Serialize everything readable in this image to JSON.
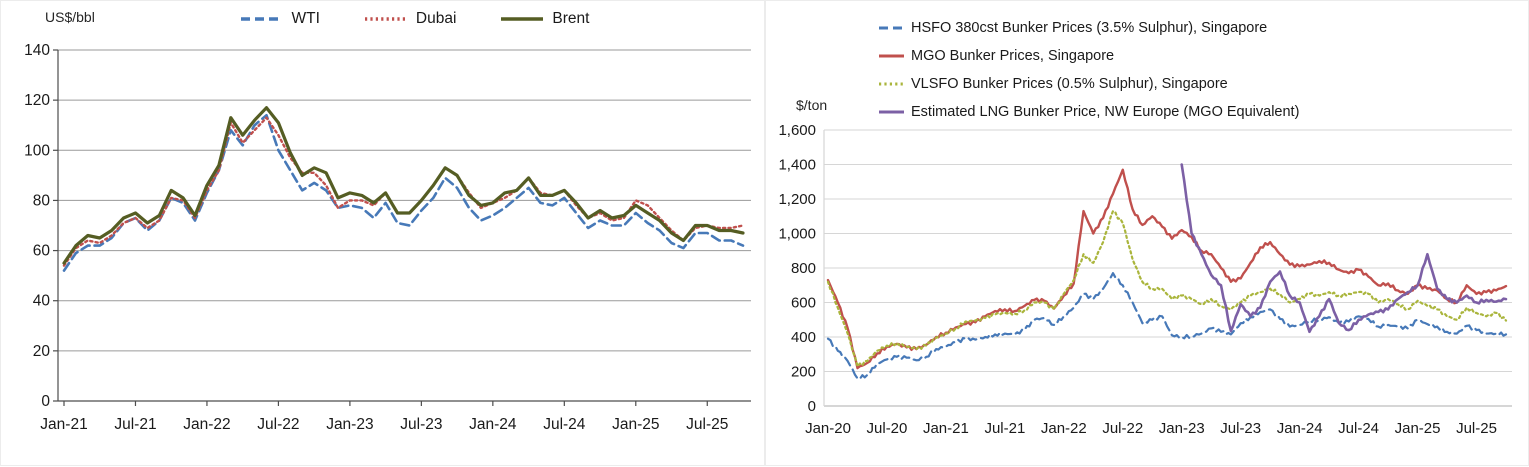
{
  "charts": [
    {
      "id": "crude-oil-spot-prices",
      "unit_label": "US$/bbl",
      "chart_data": {
        "type": "line",
        "title": "",
        "xlabel": "",
        "ylabel": "US$/bbl",
        "ylim": [
          0,
          140
        ],
        "grid": "horizontal",
        "legend_position": "top-center",
        "y_tick_labels": [
          "0",
          "20",
          "40",
          "60",
          "80",
          "100",
          "120",
          "140"
        ],
        "y_tick_values": [
          0,
          20,
          40,
          60,
          80,
          100,
          120,
          140
        ],
        "x_tick_labels": [
          "Jan-21",
          "Jul-21",
          "Jan-22",
          "Jul-22",
          "Jan-23",
          "Jul-23",
          "Jan-24",
          "Jul-24",
          "Jan-25",
          "Jul-25"
        ],
        "x_tick_every_months": 6,
        "x": [
          "Jan-21",
          "Feb-21",
          "Mar-21",
          "Apr-21",
          "May-21",
          "Jun-21",
          "Jul-21",
          "Aug-21",
          "Sep-21",
          "Oct-21",
          "Nov-21",
          "Dec-21",
          "Jan-22",
          "Feb-22",
          "Mar-22",
          "Apr-22",
          "May-22",
          "Jun-22",
          "Jul-22",
          "Aug-22",
          "Sep-22",
          "Oct-22",
          "Nov-22",
          "Dec-22",
          "Jan-23",
          "Feb-23",
          "Mar-23",
          "Apr-23",
          "May-23",
          "Jun-23",
          "Jul-23",
          "Aug-23",
          "Sep-23",
          "Oct-23",
          "Nov-23",
          "Dec-23",
          "Jan-24",
          "Feb-24",
          "Mar-24",
          "Apr-24",
          "May-24",
          "Jun-24",
          "Jul-24",
          "Aug-24",
          "Sep-24",
          "Oct-24",
          "Nov-24",
          "Dec-24",
          "Jan-25",
          "Feb-25",
          "Mar-25",
          "Apr-25",
          "May-25",
          "Jun-25",
          "Jul-25",
          "Aug-25",
          "Sep-25",
          "Oct-25"
        ],
        "series": [
          {
            "name": "WTI",
            "color": "#4779B8",
            "style": "dashed",
            "width": 2.6,
            "values": [
              52,
              59,
              62,
              62,
              65,
              71,
              73,
              68,
              72,
              81,
              79,
              72,
              83,
              92,
              108,
              102,
              110,
              114,
              100,
              92,
              84,
              87,
              84,
              77,
              78,
              77,
              73,
              79,
              71,
              70,
              76,
              81,
              89,
              85,
              77,
              72,
              74,
              77,
              81,
              85,
              79,
              78,
              81,
              75,
              69,
              72,
              70,
              70,
              75,
              71,
              68,
              63,
              61,
              67,
              67,
              64,
              64,
              62
            ]
          },
          {
            "name": "Dubai",
            "color": "#C0504D",
            "style": "dotted",
            "width": 2.4,
            "values": [
              54,
              61,
              64,
              63,
              66,
              71,
              73,
              69,
              72,
              81,
              80,
              73,
              84,
              92,
              111,
              103,
              108,
              113,
              106,
              97,
              91,
              91,
              86,
              77,
              80,
              80,
              78,
              83,
              75,
              75,
              80,
              86,
              93,
              90,
              83,
              77,
              79,
              81,
              84,
              89,
              83,
              82,
              84,
              78,
              73,
              75,
              72,
              73,
              80,
              78,
              73,
              68,
              64,
              69,
              70,
              69,
              69,
              70
            ]
          },
          {
            "name": "Brent",
            "color": "#555D23",
            "style": "solid",
            "width": 3.2,
            "values": [
              55,
              62,
              66,
              65,
              68,
              73,
              75,
              71,
              74,
              84,
              81,
              74,
              86,
              94,
              113,
              106,
              112,
              117,
              111,
              99,
              90,
              93,
              91,
              81,
              83,
              82,
              79,
              83,
              75,
              75,
              80,
              86,
              93,
              90,
              82,
              78,
              79,
              83,
              84,
              89,
              82,
              82,
              84,
              79,
              73,
              76,
              73,
              74,
              78,
              75,
              72,
              67,
              64,
              70,
              70,
              68,
              68,
              67
            ]
          }
        ]
      }
    },
    {
      "id": "bunker-prices",
      "unit_label": "$/ton",
      "chart_data": {
        "type": "line",
        "title": "",
        "xlabel": "",
        "ylabel": "$/ton",
        "ylim": [
          0,
          1600
        ],
        "grid": "horizontal",
        "legend_position": "top-left-stacked",
        "weekly_texture": true,
        "y_tick_labels": [
          "0",
          "200",
          "400",
          "600",
          "800",
          "1,000",
          "1,200",
          "1,400",
          "1,600"
        ],
        "y_tick_values": [
          0,
          200,
          400,
          600,
          800,
          1000,
          1200,
          1400,
          1600
        ],
        "x_tick_labels": [
          "Jan-20",
          "Jul-20",
          "Jan-21",
          "Jul-21",
          "Jan-22",
          "Jul-22",
          "Jan-23",
          "Jul-23",
          "Jan-24",
          "Jul-24",
          "Jan-25",
          "Jul-25"
        ],
        "x_tick_every_months": 6,
        "x": [
          "Jan-20",
          "Feb-20",
          "Mar-20",
          "Apr-20",
          "May-20",
          "Jun-20",
          "Jul-20",
          "Aug-20",
          "Sep-20",
          "Oct-20",
          "Nov-20",
          "Dec-20",
          "Jan-21",
          "Feb-21",
          "Mar-21",
          "Apr-21",
          "May-21",
          "Jun-21",
          "Jul-21",
          "Aug-21",
          "Sep-21",
          "Oct-21",
          "Nov-21",
          "Dec-21",
          "Jan-22",
          "Feb-22",
          "Mar-22",
          "Apr-22",
          "May-22",
          "Jun-22",
          "Jul-22",
          "Aug-22",
          "Sep-22",
          "Oct-22",
          "Nov-22",
          "Dec-22",
          "Jan-23",
          "Feb-23",
          "Mar-23",
          "Apr-23",
          "May-23",
          "Jun-23",
          "Jul-23",
          "Aug-23",
          "Sep-23",
          "Oct-23",
          "Nov-23",
          "Dec-23",
          "Jan-24",
          "Feb-24",
          "Mar-24",
          "Apr-24",
          "May-24",
          "Jun-24",
          "Jul-24",
          "Aug-24",
          "Sep-24",
          "Oct-24",
          "Nov-24",
          "Dec-24",
          "Jan-25",
          "Feb-25",
          "Mar-25",
          "Apr-25",
          "May-25",
          "Jun-25",
          "Jul-25",
          "Aug-25",
          "Sep-25",
          "Oct-25"
        ],
        "series": [
          {
            "name": "HSFO 380cst Bunker Prices (3.5% Sulphur), Singapore",
            "color": "#4779B8",
            "style": "dashed",
            "width": 2.2,
            "values": [
              390,
              320,
              260,
              160,
              180,
              245,
              270,
              285,
              280,
              265,
              285,
              330,
              345,
              370,
              390,
              385,
              400,
              415,
              420,
              415,
              440,
              500,
              510,
              470,
              520,
              570,
              650,
              620,
              680,
              770,
              700,
              600,
              480,
              500,
              520,
              410,
              400,
              405,
              420,
              450,
              430,
              415,
              480,
              515,
              545,
              560,
              505,
              460,
              470,
              495,
              500,
              515,
              480,
              490,
              520,
              505,
              460,
              470,
              460,
              450,
              500,
              475,
              460,
              430,
              420,
              465,
              440,
              420,
              420,
              415
            ]
          },
          {
            "name": "MGO Bunker Prices, Singapore",
            "color": "#C0504D",
            "style": "solid",
            "width": 2.4,
            "values": [
              730,
              600,
              450,
              220,
              250,
              305,
              345,
              360,
              340,
              330,
              355,
              400,
              425,
              455,
              475,
              485,
              520,
              550,
              560,
              550,
              580,
              615,
              610,
              565,
              640,
              710,
              1130,
              1000,
              1090,
              1230,
              1370,
              1140,
              1050,
              1100,
              1040,
              970,
              1020,
              980,
              900,
              880,
              800,
              720,
              740,
              830,
              920,
              950,
              880,
              820,
              810,
              820,
              840,
              830,
              790,
              770,
              790,
              750,
              700,
              710,
              670,
              650,
              700,
              680,
              670,
              620,
              600,
              700,
              650,
              660,
              670,
              695
            ]
          },
          {
            "name": "VLSFO Bunker Prices (0.5% Sulphur), Singapore",
            "color": "#AAB53C",
            "style": "dotted",
            "width": 2.2,
            "values": [
              720,
              570,
              420,
              230,
              260,
              320,
              350,
              365,
              345,
              330,
              350,
              395,
              420,
              450,
              490,
              495,
              510,
              530,
              540,
              535,
              555,
              600,
              600,
              560,
              650,
              730,
              880,
              830,
              950,
              1130,
              1060,
              850,
              720,
              680,
              680,
              620,
              640,
              620,
              590,
              620,
              580,
              560,
              600,
              640,
              660,
              680,
              650,
              600,
              620,
              650,
              640,
              660,
              640,
              650,
              660,
              650,
              600,
              620,
              590,
              560,
              610,
              580,
              560,
              520,
              500,
              570,
              540,
              520,
              540,
              495
            ]
          },
          {
            "name": "Estimated LNG Bunker Price, NW Europe (MGO Equivalent)",
            "color": "#7C60A5",
            "style": "solid",
            "width": 2.6,
            "values": [
              null,
              null,
              null,
              null,
              null,
              null,
              null,
              null,
              null,
              null,
              null,
              null,
              null,
              null,
              null,
              null,
              null,
              null,
              null,
              null,
              null,
              null,
              null,
              null,
              null,
              null,
              null,
              null,
              null,
              null,
              null,
              null,
              null,
              null,
              null,
              null,
              1400,
              1000,
              880,
              760,
              700,
              435,
              590,
              520,
              570,
              720,
              780,
              640,
              600,
              430,
              520,
              620,
              480,
              440,
              500,
              530,
              545,
              560,
              620,
              660,
              700,
              880,
              680,
              620,
              600,
              640,
              600,
              615,
              605,
              620
            ]
          }
        ]
      }
    }
  ]
}
